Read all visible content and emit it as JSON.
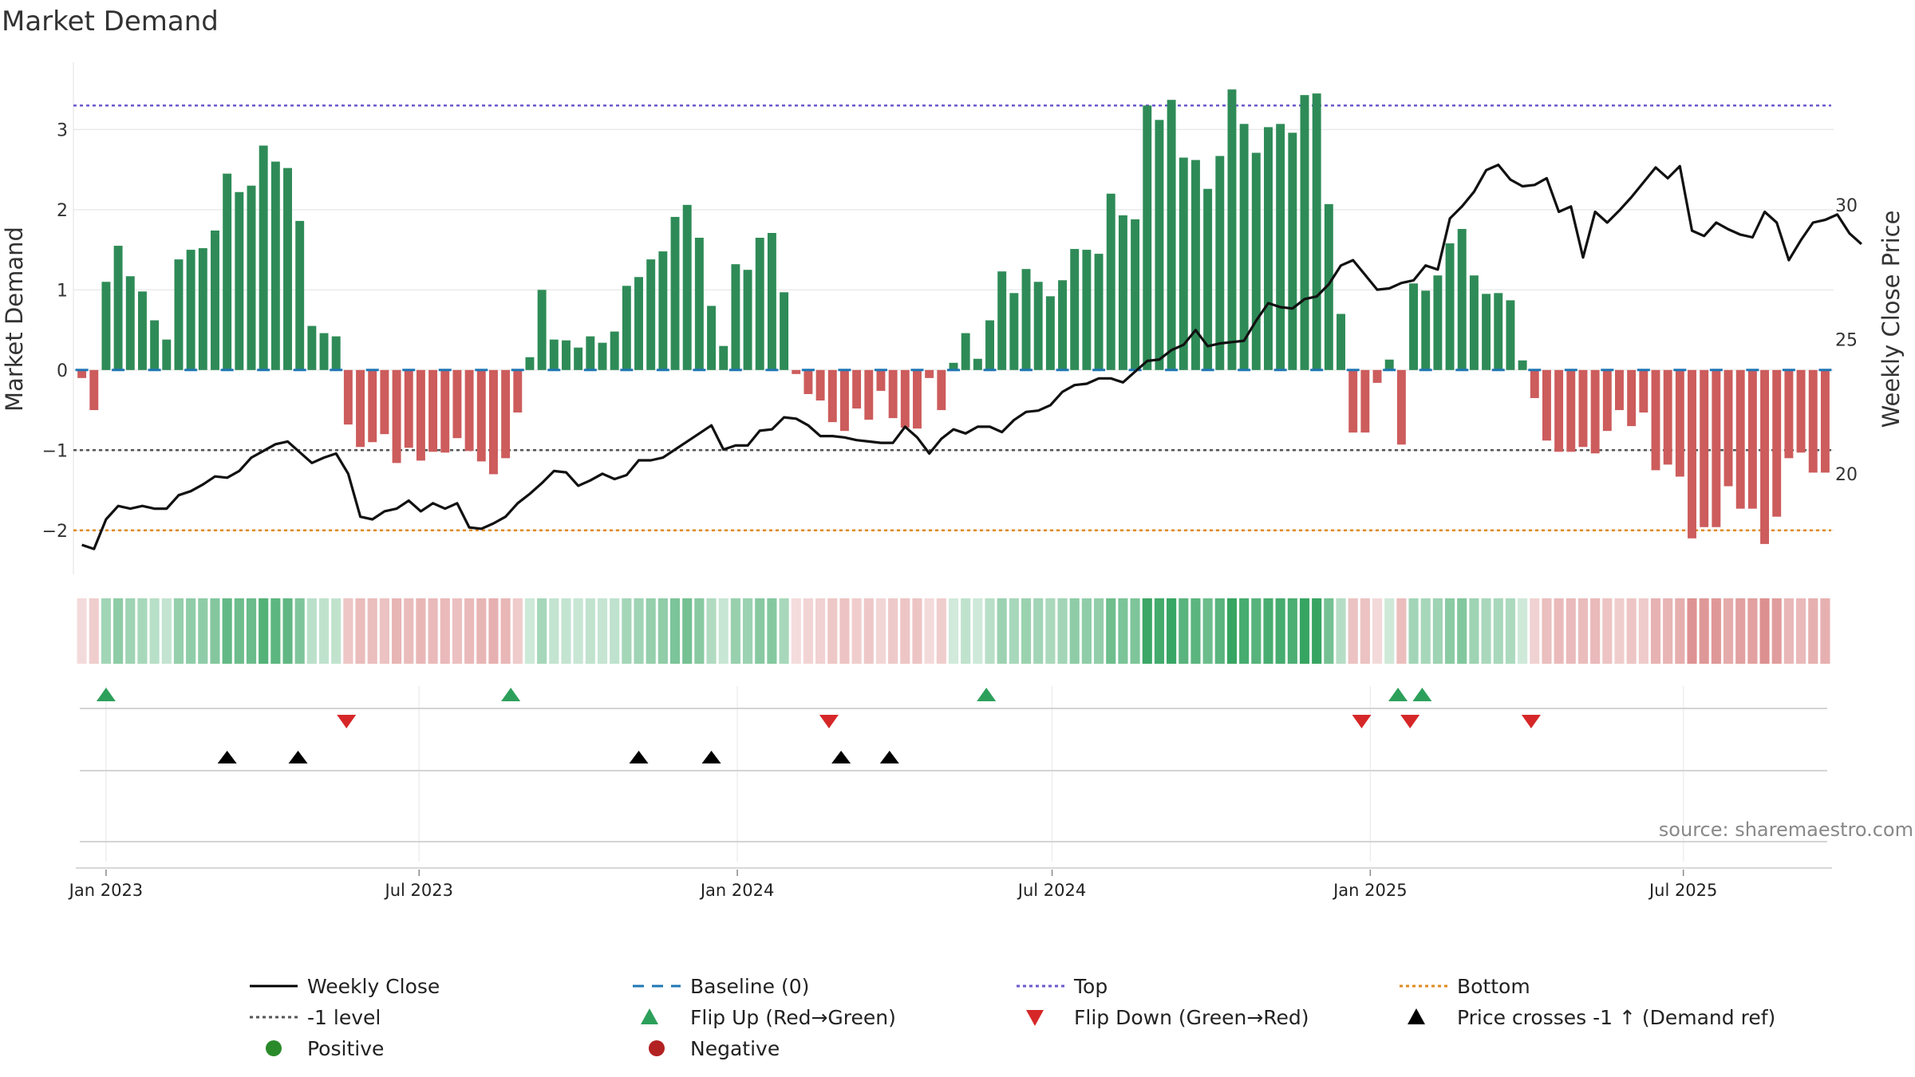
{
  "chart_data": {
    "type": "bar",
    "title": "Market Demand",
    "ylabel": "Market Demand",
    "y2label": "Weekly Close Price",
    "ylim": [
      -2.5,
      3.8
    ],
    "y2lim": [
      16.4,
      35.2
    ],
    "yticks": [
      "3",
      "2",
      "1",
      "0",
      "−1",
      "−2"
    ],
    "y2ticks": [
      "30",
      "25",
      "20"
    ],
    "xticks": [
      "Jan 2023",
      "Jul 2023",
      "Jan 2024",
      "Jul 2024",
      "Jan 2025",
      "Jul 2025"
    ],
    "levels": {
      "top": 3.3,
      "minus_one": -1,
      "bottom": -2
    },
    "source": "source: sharemaestro.com",
    "start_week": "2022-12-18",
    "demand": [
      -0.1,
      -0.5,
      1.1,
      1.55,
      1.17,
      0.98,
      0.62,
      0.38,
      1.38,
      1.5,
      1.52,
      1.74,
      2.45,
      2.22,
      2.3,
      2.8,
      2.6,
      2.52,
      1.86,
      0.55,
      0.46,
      0.42,
      -0.68,
      -0.96,
      -0.9,
      -0.8,
      -1.16,
      -0.97,
      -1.13,
      -1.02,
      -1.03,
      -0.85,
      -1.01,
      -1.14,
      -1.3,
      -1.1,
      -0.53,
      0.16,
      1.0,
      0.38,
      0.37,
      0.28,
      0.42,
      0.34,
      0.48,
      1.05,
      1.16,
      1.38,
      1.48,
      1.91,
      2.06,
      1.65,
      0.8,
      0.3,
      1.32,
      1.25,
      1.65,
      1.71,
      0.97,
      -0.05,
      -0.3,
      -0.38,
      -0.65,
      -0.76,
      -0.48,
      -0.62,
      -0.26,
      -0.6,
      -0.72,
      -0.73,
      -0.1,
      -0.5,
      0.09,
      0.46,
      0.14,
      0.62,
      1.23,
      0.96,
      1.26,
      1.1,
      0.92,
      1.12,
      1.51,
      1.5,
      1.45,
      2.2,
      1.93,
      1.88,
      3.3,
      3.12,
      3.37,
      2.65,
      2.62,
      2.26,
      2.67,
      3.5,
      3.07,
      2.71,
      3.03,
      3.07,
      2.96,
      3.43,
      3.45,
      2.07,
      0.7,
      -0.78,
      -0.78,
      -0.16,
      0.13,
      -0.93,
      1.08,
      0.99,
      1.18,
      1.58,
      1.76,
      1.18,
      0.95,
      0.96,
      0.87,
      0.12,
      -0.35,
      -0.88,
      -1.02,
      -1.02,
      -0.96,
      -1.04,
      -0.76,
      -0.5,
      -0.7,
      -0.53,
      -1.25,
      -1.18,
      -1.33,
      -2.1,
      -1.96,
      -1.96,
      -1.45,
      -1.73,
      -1.73,
      -2.17,
      -1.83,
      -1.1,
      -1.03,
      -1.28,
      -1.28
    ],
    "series": [
      {
        "name": "Weekly Close",
        "values": [
          17.35,
          17.2,
          18.3,
          18.8,
          18.7,
          18.8,
          18.7,
          18.7,
          19.2,
          19.35,
          19.6,
          19.9,
          19.85,
          20.1,
          20.6,
          20.85,
          21.1,
          21.2,
          20.8,
          20.4,
          20.6,
          20.75,
          20.0,
          18.4,
          18.3,
          18.6,
          18.7,
          19.0,
          18.6,
          18.9,
          18.7,
          18.9,
          18.0,
          17.95,
          18.15,
          18.4,
          18.9,
          19.25,
          19.65,
          20.1,
          20.05,
          19.55,
          19.75,
          20.0,
          19.8,
          19.95,
          20.5,
          20.5,
          20.6,
          20.9,
          21.2,
          21.5,
          21.8,
          20.9,
          21.05,
          21.05,
          21.6,
          21.65,
          22.1,
          22.05,
          21.8,
          21.4,
          21.4,
          21.35,
          21.25,
          21.2,
          21.15,
          21.15,
          21.75,
          21.35,
          20.75,
          21.3,
          21.65,
          21.5,
          21.75,
          21.75,
          21.55,
          22.0,
          22.3,
          22.35,
          22.55,
          23.05,
          23.3,
          23.35,
          23.55,
          23.55,
          23.4,
          23.8,
          24.2,
          24.25,
          24.6,
          24.8,
          25.35,
          24.75,
          24.85,
          24.9,
          24.95,
          25.7,
          26.35,
          26.2,
          26.15,
          26.5,
          26.6,
          27.05,
          27.75,
          27.95,
          27.4,
          26.85,
          26.9,
          27.1,
          27.2,
          27.75,
          27.6,
          29.5,
          29.95,
          30.5,
          31.3,
          31.5,
          30.95,
          30.7,
          30.75,
          31.0,
          29.75,
          29.95,
          28.05,
          29.75,
          29.35,
          29.8,
          30.3,
          30.85,
          31.4,
          31.0,
          31.45,
          29.05,
          28.85,
          29.35,
          29.1,
          28.9,
          28.8,
          29.75,
          29.35,
          27.95,
          28.7,
          29.35,
          29.45,
          29.65,
          28.95,
          28.55
        ]
      },
      {
        "name": "Baseline (0)",
        "values": [
          0
        ]
      },
      {
        "name": "Top",
        "values": [
          3.3
        ]
      },
      {
        "name": "Bottom",
        "values": [
          -2
        ]
      },
      {
        "name": "-1 level",
        "values": [
          -1
        ]
      }
    ],
    "events": {
      "flip_up": [
        "Jan 2023",
        "Aug 2023",
        "May 2024",
        "Jan 2025",
        "Jan 2025"
      ],
      "flip_down": [
        "May 2023",
        "Feb 2024",
        "Dec 2024",
        "Jan 2025",
        "Apr 2025"
      ],
      "price_cross": [
        "Mar 2023",
        "Apr 2023",
        "Nov 2023",
        "Dec 2023",
        "Mar 2024",
        "Apr 2024"
      ]
    },
    "legend": [
      {
        "label": "Weekly Close",
        "marker": "line",
        "color": "#000000"
      },
      {
        "label": "Baseline (0)",
        "marker": "dash",
        "color": "#1f77b4"
      },
      {
        "label": "Top",
        "marker": "dot",
        "color": "#6a5acd"
      },
      {
        "label": "Bottom",
        "marker": "dot",
        "color": "#e08a1e"
      },
      {
        "label": "-1 level",
        "marker": "dot",
        "color": "#555555"
      },
      {
        "label": "Flip Up (Red→Green)",
        "marker": "tri-up",
        "color": "#2ca05a"
      },
      {
        "label": "Flip Down (Green→Red)",
        "marker": "tri-down",
        "color": "#d62728"
      },
      {
        "label": "Price crosses -1 ↑ (Demand ref)",
        "marker": "tri-up",
        "color": "#000000"
      },
      {
        "label": "Positive",
        "marker": "circle",
        "color": "#2a8a2a"
      },
      {
        "label": "Negative",
        "marker": "circle",
        "color": "#b22222"
      }
    ],
    "colors": {
      "positive": "#2e8b57",
      "negative": "#cd5c5c",
      "heat_pos": "#2ca05a",
      "heat_neg": "#cd5c5c",
      "flip_up": "#2ca05a",
      "flip_down": "#d62728"
    }
  }
}
